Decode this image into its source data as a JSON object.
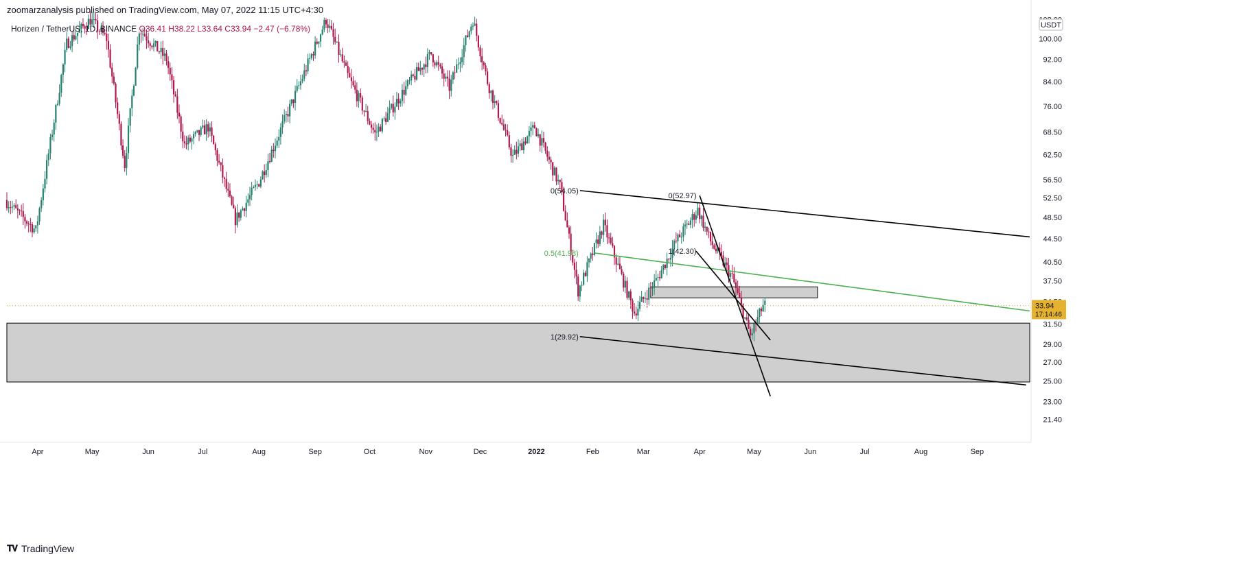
{
  "header": {
    "published": "zoomarzanalysis published on TradingView.com, May 07, 2022 11:15 UTC+4:30",
    "symbol": "Horizen / TetherUS, 1D, BINANCE",
    "ohlc": "O36.41 H38.22 L33.64 C33.94 −2.47 (−6.78%)"
  },
  "footer": {
    "brand": "TradingView",
    "logo": "tradingview-logo"
  },
  "price_axis": {
    "currency": "USDT",
    "current_price": "33.94",
    "countdown": "17:14:46",
    "badge_color": "#e5b230"
  },
  "colors": {
    "up": "#26826f",
    "down": "#b0164e",
    "fib_mid": "#4caf50",
    "zone_fill": "#cfcfcf",
    "line": "#000000"
  },
  "chart_data": {
    "type": "candlestick",
    "title": "Horizen / TetherUS, 1D, BINANCE",
    "y_scale": "log",
    "ylim": [
      19.5,
      110
    ],
    "y_ticks": [
      21.4,
      23.0,
      25.0,
      27.0,
      29.0,
      31.5,
      34.5,
      37.5,
      40.5,
      44.5,
      48.5,
      52.5,
      56.5,
      62.5,
      68.5,
      76.0,
      84.0,
      92.0,
      100.0,
      108.0
    ],
    "x_ticks": [
      "Apr",
      "May",
      "Jun",
      "Jul",
      "Aug",
      "Sep",
      "Oct",
      "Nov",
      "Dec",
      "2022",
      "Feb",
      "Mar",
      "Apr",
      "May",
      "Jun",
      "Jul",
      "Aug",
      "Sep"
    ],
    "x_range": [
      "2021-03-15",
      "2022-09-30"
    ],
    "anchors": [
      [
        "2021-03-15",
        52
      ],
      [
        "2021-04-01",
        46
      ],
      [
        "2021-04-18",
        98
      ],
      [
        "2021-05-01",
        108
      ],
      [
        "2021-05-10",
        100
      ],
      [
        "2021-05-20",
        60
      ],
      [
        "2021-05-28",
        104
      ],
      [
        "2021-06-12",
        92
      ],
      [
        "2021-06-22",
        65
      ],
      [
        "2021-07-05",
        70
      ],
      [
        "2021-07-20",
        48
      ],
      [
        "2021-08-02",
        56
      ],
      [
        "2021-08-25",
        84
      ],
      [
        "2021-09-08",
        108
      ],
      [
        "2021-09-20",
        86
      ],
      [
        "2021-10-05",
        68
      ],
      [
        "2021-10-22",
        82
      ],
      [
        "2021-11-05",
        94
      ],
      [
        "2021-11-15",
        82
      ],
      [
        "2021-11-28",
        108
      ],
      [
        "2021-12-06",
        84
      ],
      [
        "2021-12-20",
        62
      ],
      [
        "2022-01-01",
        70
      ],
      [
        "2022-01-15",
        55
      ],
      [
        "2022-01-25",
        36
      ],
      [
        "2022-02-08",
        47
      ],
      [
        "2022-02-25",
        33
      ],
      [
        "2022-03-10",
        38
      ],
      [
        "2022-03-20",
        44
      ],
      [
        "2022-04-01",
        50
      ],
      [
        "2022-04-08",
        44
      ],
      [
        "2022-04-20",
        38
      ],
      [
        "2022-04-30",
        30
      ],
      [
        "2022-05-07",
        33.94
      ]
    ],
    "current_price": 33.94,
    "zones": [
      {
        "name": "support-zone",
        "from": "2021-03-15",
        "to": "2022-09-30",
        "low": 24.9,
        "high": 31.6
      },
      {
        "name": "resistance-box",
        "from": "2022-03-05",
        "to": "2022-06-05",
        "low": 35.0,
        "high": 36.6
      }
    ],
    "lines": [
      {
        "name": "channel-top",
        "from": [
          "2022-01-25",
          54.05
        ],
        "to": [
          "2022-09-30",
          44.8
        ],
        "color": "#000000"
      },
      {
        "name": "channel-bottom",
        "from": [
          "2022-01-25",
          29.92
        ],
        "to": [
          "2022-09-28",
          24.6
        ],
        "color": "#000000"
      },
      {
        "name": "fib-0.5-line",
        "from": [
          "2022-02-02",
          41.98
        ],
        "to": [
          "2022-09-30",
          33.2
        ],
        "color": "#4caf50"
      },
      {
        "name": "wedge-outer",
        "from": [
          "2022-04-01",
          52.97
        ],
        "to": [
          "2022-05-10",
          23.5
        ],
        "color": "#000000"
      },
      {
        "name": "wedge-inner",
        "from": [
          "2022-03-30",
          42.3
        ],
        "to": [
          "2022-05-10",
          29.5
        ],
        "color": "#000000"
      }
    ],
    "fib_labels": [
      {
        "text": "0(54.05)",
        "date": "2022-01-25",
        "price": 54.05
      },
      {
        "text": "0.5(41.98)",
        "date": "2022-01-25",
        "price": 41.98
      },
      {
        "text": "1(29.92)",
        "date": "2022-01-25",
        "price": 29.92
      },
      {
        "text": "0(52.97)",
        "date": "2022-03-31",
        "price": 52.97
      },
      {
        "text": "1(42.30)",
        "date": "2022-03-31",
        "price": 42.3
      }
    ]
  }
}
